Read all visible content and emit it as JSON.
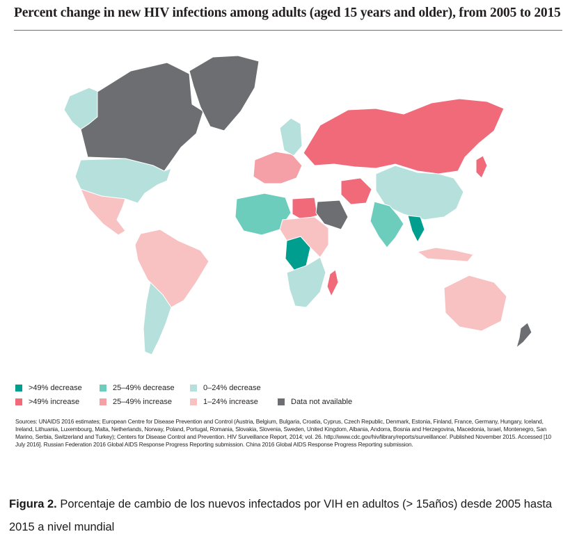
{
  "title": "Percent change in new HIV infections among adults (aged 15 years and older), from 2005 to 2015",
  "legend": [
    {
      "label": ">49% decrease",
      "color": "#009e8e"
    },
    {
      "label": "25–49% decrease",
      "color": "#6dcdbd"
    },
    {
      "label": "0–24% decrease",
      "color": "#b5e0dc"
    },
    {
      "label": ">49% increase",
      "color": "#f06a79"
    },
    {
      "label": "25–49% increase",
      "color": "#f5a0a7"
    },
    {
      "label": "1–24% increase",
      "color": "#f8c2c3"
    },
    {
      "label": "Data not available",
      "color": "#6d6e71"
    }
  ],
  "regions": [
    {
      "name": "Alaska",
      "category": "0–24% decrease"
    },
    {
      "name": "Canada",
      "category": "Data not available"
    },
    {
      "name": "Greenland",
      "category": "Data not available"
    },
    {
      "name": "United States",
      "category": "0–24% decrease"
    },
    {
      "name": "Mexico",
      "category": "1–24% increase"
    },
    {
      "name": "Brazil",
      "category": "1–24% increase"
    },
    {
      "name": "Argentina",
      "category": "0–24% decrease"
    },
    {
      "name": "Russian Federation",
      "category": ">49% increase"
    },
    {
      "name": "China",
      "category": "0–24% decrease"
    },
    {
      "name": "India",
      "category": "25–49% decrease"
    },
    {
      "name": "Nigeria",
      "category": ">49% decrease"
    },
    {
      "name": "Egypt",
      "category": ">49% increase"
    },
    {
      "name": "Madagascar",
      "category": ">49% increase"
    },
    {
      "name": "Australia",
      "category": "1–24% increase"
    },
    {
      "name": "New Zealand",
      "category": "Data not available"
    },
    {
      "name": "Japan",
      "category": ">49% increase"
    },
    {
      "name": "Thailand",
      "category": ">49% decrease"
    },
    {
      "name": "Iran",
      "category": ">49% increase"
    },
    {
      "name": "Saudi Arabia",
      "category": "Data not available"
    },
    {
      "name": "South Africa",
      "category": "0–24% decrease"
    }
  ],
  "sources": "Sources: UNAIDS 2016 estimates; European Centre for Disease Prevention and Control (Austria, Belgium, Bulgaria, Croatia, Cyprus, Czech Republic, Denmark, Estonia, Finland, France, Germany, Hungary, Iceland, Ireland, Lithuania, Luxembourg, Malta, Netherlands, Norway, Poland, Portugal, Romania, Slovakia, Slovenia, Sweden, United Kingdom, Albania, Andorra, Bosnia and Herzegovina, Macedonia, Israel, Montenegro, San Marino, Serbia, Switzerland and Turkey); Centers for Disease Control and Prevention. HIV Surveillance Report, 2014; vol. 26. http://www.cdc.gov/hiv/library/reports/surveillance/. Published November 2015. Accessed [10 July 2016]. Russian Federation 2016 Global AIDS Response Progress Reporting submission. China 2016 Global AIDS Response Progress Reporting submission.",
  "caption": {
    "label": "Figura 2.",
    "text": "Porcentaje de cambio de los nuevos infectados por VIH en adultos (> 15años) desde 2005 hasta 2015 a nivel mundial"
  }
}
